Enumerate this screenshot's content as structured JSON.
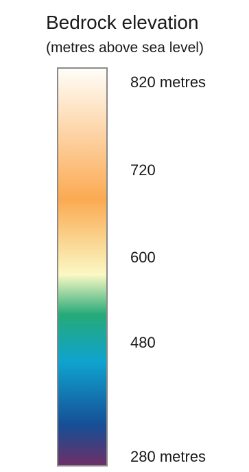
{
  "legend": {
    "title": "Bedrock elevation",
    "subtitle": "(metres above sea level)",
    "ticks": [
      {
        "label": "820 metres",
        "value": 820
      },
      {
        "label": "720",
        "value": 720
      },
      {
        "label": "600",
        "value": 600
      },
      {
        "label": "480",
        "value": 480
      },
      {
        "label": "280 metres",
        "value": 280
      }
    ],
    "colors": {
      "820": "#fffdf8",
      "720": "#fbaa52",
      "600": "#faf8c4",
      "560": "#26aa78",
      "480": "#0fa3cf",
      "380": "#164e95",
      "280": "#6d2f67"
    }
  }
}
